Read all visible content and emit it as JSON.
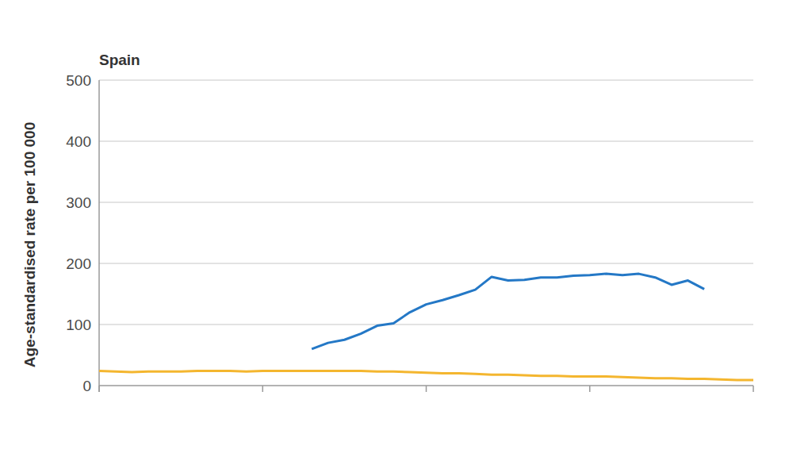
{
  "chart_data": {
    "type": "line",
    "title": "Spain",
    "y_label": "Age-standardised rate per 100 000",
    "x": [
      0,
      1,
      2,
      3,
      4,
      5,
      6,
      7,
      8,
      9,
      10,
      11,
      12,
      13,
      14,
      15,
      16,
      17,
      18,
      19,
      20,
      21,
      22,
      23,
      24,
      25,
      26,
      27,
      28,
      29,
      30,
      31,
      32,
      33,
      34,
      35,
      36,
      37,
      38,
      39,
      40
    ],
    "xlim": [
      0,
      40
    ],
    "xticks": [
      0,
      10,
      20,
      30,
      40
    ],
    "ylim": [
      0,
      500
    ],
    "yticks": [
      0,
      100,
      200,
      300,
      400,
      500
    ],
    "grid": true,
    "tick_labels": "y",
    "series": [
      {
        "color": "#2478c6",
        "values": [
          null,
          null,
          null,
          null,
          null,
          null,
          null,
          null,
          null,
          null,
          null,
          null,
          null,
          60,
          70,
          75,
          85,
          98,
          102,
          120,
          133,
          140,
          148,
          157,
          178,
          172,
          173,
          177,
          177,
          180,
          181,
          183,
          181,
          183,
          177,
          165,
          172,
          158,
          null,
          null,
          null
        ]
      },
      {
        "color": "#f4b62f",
        "values": [
          24,
          23,
          22,
          23,
          23,
          23,
          24,
          24,
          24,
          23,
          24,
          24,
          24,
          24,
          24,
          24,
          24,
          23,
          23,
          22,
          21,
          20,
          20,
          19,
          18,
          18,
          17,
          16,
          16,
          15,
          15,
          15,
          14,
          13,
          12,
          12,
          11,
          11,
          10,
          9,
          9
        ]
      }
    ]
  }
}
